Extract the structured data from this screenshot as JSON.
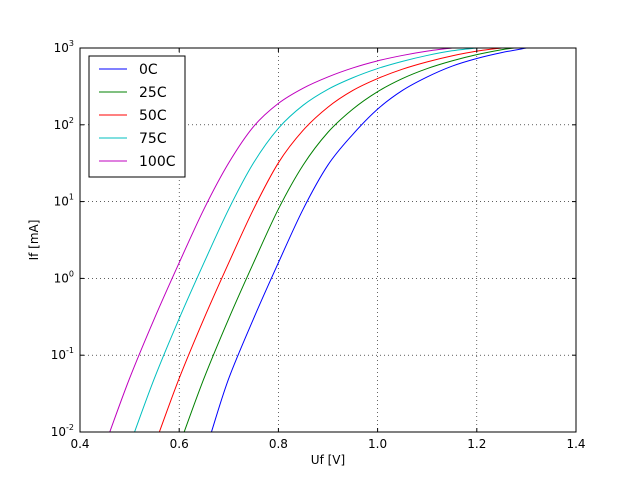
{
  "chart_data": {
    "type": "line",
    "xlabel": "Uf [V]",
    "ylabel": "If [mA]",
    "xlim": [
      0.4,
      1.4
    ],
    "ylim": [
      0.01,
      1000
    ],
    "yscale": "log",
    "grid": true,
    "legend_position": "top-left",
    "x_ticks": [
      "0.4",
      "0.6",
      "0.8",
      "1.0",
      "1.2",
      "1.4"
    ],
    "y_ticks": [
      {
        "base": "10",
        "exp": "-2"
      },
      {
        "base": "10",
        "exp": "-1"
      },
      {
        "base": "10",
        "exp": "0"
      },
      {
        "base": "10",
        "exp": "1"
      },
      {
        "base": "10",
        "exp": "2"
      },
      {
        "base": "10",
        "exp": "3"
      }
    ],
    "series": [
      {
        "name": "0C",
        "color": "#0000ff",
        "points": [
          [
            0.665,
            0.01
          ],
          [
            0.7,
            0.05
          ],
          [
            0.75,
            0.3
          ],
          [
            0.8,
            1.6
          ],
          [
            0.85,
            8.0
          ],
          [
            0.9,
            30
          ],
          [
            0.95,
            75
          ],
          [
            1.0,
            160
          ],
          [
            1.05,
            280
          ],
          [
            1.1,
            420
          ],
          [
            1.15,
            580
          ],
          [
            1.2,
            730
          ],
          [
            1.25,
            870
          ],
          [
            1.3,
            1000
          ]
        ]
      },
      {
        "name": "25C",
        "color": "#008000",
        "points": [
          [
            0.61,
            0.01
          ],
          [
            0.65,
            0.05
          ],
          [
            0.7,
            0.3
          ],
          [
            0.75,
            1.6
          ],
          [
            0.8,
            8.0
          ],
          [
            0.85,
            30
          ],
          [
            0.9,
            80
          ],
          [
            0.95,
            160
          ],
          [
            1.0,
            270
          ],
          [
            1.05,
            400
          ],
          [
            1.1,
            540
          ],
          [
            1.15,
            680
          ],
          [
            1.2,
            820
          ],
          [
            1.25,
            950
          ],
          [
            1.275,
            1000
          ]
        ]
      },
      {
        "name": "50C",
        "color": "#ff0000",
        "points": [
          [
            0.56,
            0.01
          ],
          [
            0.6,
            0.05
          ],
          [
            0.65,
            0.3
          ],
          [
            0.7,
            1.6
          ],
          [
            0.75,
            8.0
          ],
          [
            0.8,
            32
          ],
          [
            0.85,
            85
          ],
          [
            0.9,
            170
          ],
          [
            0.95,
            280
          ],
          [
            1.0,
            400
          ],
          [
            1.05,
            530
          ],
          [
            1.1,
            660
          ],
          [
            1.15,
            790
          ],
          [
            1.2,
            910
          ],
          [
            1.25,
            1000
          ]
        ]
      },
      {
        "name": "75C",
        "color": "#00bfbf",
        "points": [
          [
            0.51,
            0.01
          ],
          [
            0.55,
            0.05
          ],
          [
            0.6,
            0.3
          ],
          [
            0.65,
            1.6
          ],
          [
            0.7,
            8.0
          ],
          [
            0.75,
            32
          ],
          [
            0.8,
            90
          ],
          [
            0.85,
            180
          ],
          [
            0.9,
            290
          ],
          [
            0.95,
            410
          ],
          [
            1.0,
            540
          ],
          [
            1.05,
            670
          ],
          [
            1.1,
            800
          ],
          [
            1.15,
            920
          ],
          [
            1.2,
            1000
          ]
        ]
      },
      {
        "name": "100C",
        "color": "#bf00bf",
        "points": [
          [
            0.46,
            0.01
          ],
          [
            0.5,
            0.05
          ],
          [
            0.55,
            0.3
          ],
          [
            0.6,
            1.6
          ],
          [
            0.65,
            8.0
          ],
          [
            0.7,
            32
          ],
          [
            0.75,
            95
          ],
          [
            0.8,
            190
          ],
          [
            0.85,
            300
          ],
          [
            0.9,
            420
          ],
          [
            0.95,
            550
          ],
          [
            1.0,
            680
          ],
          [
            1.05,
            800
          ],
          [
            1.1,
            910
          ],
          [
            1.15,
            1000
          ]
        ]
      }
    ]
  }
}
